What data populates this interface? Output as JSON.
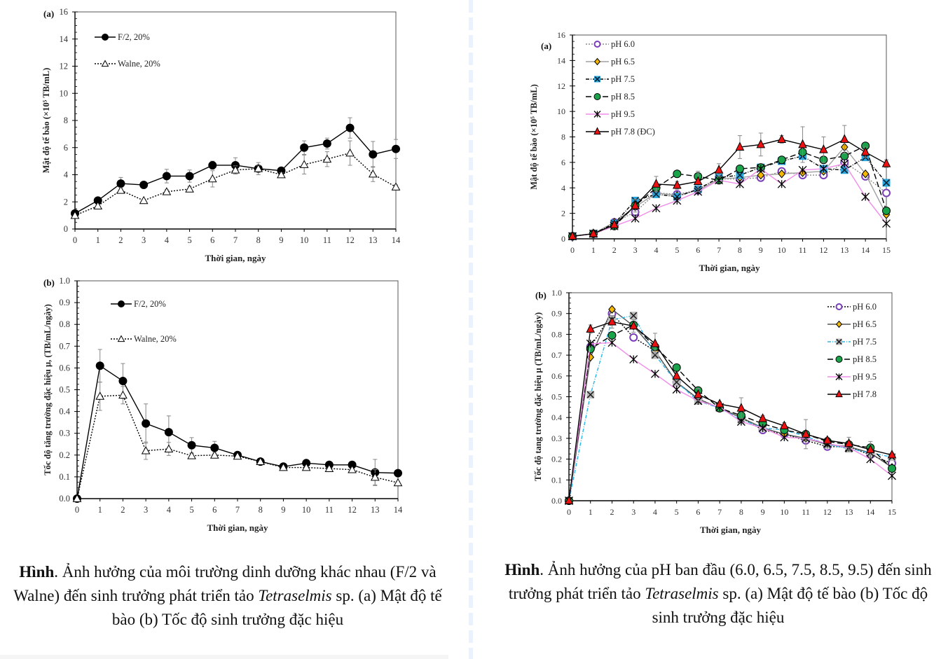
{
  "chart_data": [
    {
      "id": "left-a",
      "type": "line",
      "panel_label": "(a)",
      "title": "",
      "xlabel": "Thời gian, ngày",
      "ylabel": "Mật độ tế bào (×10⁵ TB/mL)",
      "x": [
        0,
        1,
        2,
        3,
        4,
        5,
        6,
        7,
        8,
        9,
        10,
        11,
        12,
        13,
        14
      ],
      "xlim": [
        0,
        14
      ],
      "ylim": [
        0,
        16
      ],
      "yticks": [
        0,
        2,
        4,
        6,
        8,
        10,
        12,
        14,
        16
      ],
      "ytick_format": "int",
      "legend": "top-left",
      "grid": false,
      "series": [
        {
          "name": "F/2, 20%",
          "marker": "filled-circle",
          "color": "#000000",
          "dash": "solid",
          "values": [
            1.15,
            2.1,
            3.35,
            3.25,
            3.9,
            3.9,
            4.7,
            4.7,
            4.45,
            4.3,
            6.0,
            6.3,
            7.45,
            5.5,
            5.9
          ],
          "errors": [
            0.1,
            0.15,
            0.45,
            0.2,
            0.5,
            0.45,
            0.3,
            0.55,
            0.45,
            0.2,
            0.5,
            0.4,
            0.75,
            0.95,
            0.7
          ]
        },
        {
          "name": "Walne, 20%",
          "marker": "open-triangle",
          "color": "#000000",
          "dash": "dotted",
          "values": [
            1.0,
            1.7,
            2.85,
            2.1,
            2.75,
            2.95,
            3.7,
            4.35,
            4.45,
            4.0,
            4.75,
            5.15,
            5.6,
            4.05,
            3.1
          ],
          "errors": [
            0.05,
            0.1,
            0.2,
            0.1,
            0.15,
            0.2,
            0.6,
            0.3,
            0.25,
            0.15,
            0.7,
            0.55,
            0.9,
            0.55,
            0.15
          ]
        }
      ]
    },
    {
      "id": "left-b",
      "type": "line",
      "panel_label": "(b)",
      "title": "",
      "xlabel": "Thời gian, ngày",
      "ylabel": "Tốc độ tăng trưởng đặc hiệu μ, (TB/mL/ngày)",
      "x": [
        0,
        1,
        2,
        3,
        4,
        5,
        6,
        7,
        8,
        9,
        10,
        11,
        12,
        13,
        14
      ],
      "xlim": [
        0,
        14
      ],
      "ylim": [
        0,
        1.0
      ],
      "yticks": [
        0.0,
        0.1,
        0.2,
        0.3,
        0.4,
        0.5,
        0.6,
        0.7,
        0.8,
        0.9,
        1.0
      ],
      "ytick_format": "1dp",
      "legend": "top-left",
      "grid": false,
      "series": [
        {
          "name": "F/2, 20%",
          "marker": "filled-circle",
          "color": "#000000",
          "dash": "solid",
          "values": [
            0,
            0.61,
            0.54,
            0.345,
            0.305,
            0.245,
            0.233,
            0.2,
            0.17,
            0.147,
            0.163,
            0.155,
            0.155,
            0.12,
            0.117
          ],
          "errors": [
            0,
            0.075,
            0.08,
            0.09,
            0.075,
            0.035,
            0.03,
            0.01,
            0.01,
            0.005,
            0.01,
            0.005,
            0.01,
            0.06,
            0.005
          ]
        },
        {
          "name": "Walne, 20%",
          "marker": "open-triangle",
          "color": "#000000",
          "dash": "dotted",
          "values": [
            0,
            0.47,
            0.475,
            0.22,
            0.228,
            0.197,
            0.2,
            0.195,
            0.17,
            0.143,
            0.143,
            0.138,
            0.133,
            0.098,
            0.073
          ],
          "errors": [
            0,
            0.065,
            0.04,
            0.04,
            0.03,
            0.01,
            0.01,
            0.005,
            0.005,
            0.005,
            0.005,
            0.005,
            0.005,
            0.035,
            0.005
          ]
        }
      ]
    },
    {
      "id": "right-a",
      "type": "line",
      "panel_label": "(a)",
      "title": "",
      "xlabel": "Thời gian, ngày",
      "ylabel": "Mật độ tế bào (×10⁵ TB/mL)",
      "x": [
        0,
        1,
        2,
        3,
        4,
        5,
        6,
        7,
        8,
        9,
        10,
        11,
        12,
        13,
        14,
        15
      ],
      "xlim": [
        0,
        15
      ],
      "ylim": [
        0,
        16
      ],
      "yticks": [
        0,
        2,
        4,
        6,
        8,
        10,
        12,
        14,
        16
      ],
      "ytick_format": "int",
      "legend": "top-left",
      "grid": false,
      "series": [
        {
          "name": "pH 6.0",
          "marker": "open-circle",
          "color": "#7a3db8",
          "line": "#8c8c8c",
          "dash": "dotted",
          "values": [
            0.2,
            0.4,
            1.3,
            2.1,
            3.6,
            3.5,
            3.8,
            4.7,
            4.7,
            4.8,
            5.3,
            5.0,
            5.0,
            6.0,
            4.9,
            3.6
          ]
        },
        {
          "name": "pH 6.5",
          "marker": "diamond",
          "color": "#f5b800",
          "line": "#a0a0a0",
          "dash": "solid",
          "values": [
            0.2,
            0.4,
            1.3,
            2.5,
            3.6,
            3.4,
            3.8,
            4.7,
            4.8,
            5.0,
            5.1,
            5.2,
            5.3,
            7.2,
            5.1,
            1.9
          ]
        },
        {
          "name": "pH 7.5",
          "marker": "x-square",
          "color": "#29a8e0",
          "line": "#000000",
          "dash": "dashdot",
          "values": [
            0.2,
            0.4,
            1.2,
            3.0,
            3.5,
            3.3,
            3.9,
            4.8,
            5.0,
            5.6,
            6.1,
            6.5,
            5.5,
            5.4,
            6.4,
            4.4
          ]
        },
        {
          "name": "pH 8.5",
          "marker": "filled-circle",
          "color": "#1aa34a",
          "line": "#000000",
          "dash": "longdash",
          "values": [
            0.2,
            0.4,
            1.0,
            2.6,
            4.0,
            5.1,
            4.9,
            4.6,
            5.5,
            5.6,
            6.2,
            6.8,
            6.2,
            6.5,
            7.3,
            2.2
          ]
        },
        {
          "name": "pH 9.5",
          "marker": "asterisk",
          "color": "#000000",
          "line": "#f08ce8",
          "dash": "solid",
          "values": [
            0.2,
            0.4,
            1.0,
            1.6,
            2.4,
            3.0,
            3.7,
            4.6,
            4.3,
            5.5,
            4.3,
            5.4,
            5.5,
            5.9,
            3.3,
            1.2
          ]
        },
        {
          "name": "pH 7.8 (ĐC)",
          "marker": "triangle",
          "color": "#ee1111",
          "line": "#000000",
          "dash": "solid",
          "values": [
            0.2,
            0.4,
            1.1,
            2.6,
            4.3,
            4.2,
            4.5,
            5.4,
            7.2,
            7.4,
            7.8,
            7.4,
            7.0,
            7.8,
            6.8,
            5.9
          ],
          "errors": [
            0.05,
            0.1,
            0.2,
            0.5,
            0.6,
            0.3,
            0.8,
            0.5,
            0.9,
            0.9,
            0.3,
            1.4,
            1.0,
            1.1,
            0.4,
            0.3
          ]
        }
      ]
    },
    {
      "id": "right-b",
      "type": "line",
      "panel_label": "(b)",
      "title": "",
      "xlabel": "Thời gian, ngày",
      "ylabel": "Tốc độ tang trưởng đặc hiệu μ (TB/mL/ngày)",
      "x": [
        0,
        1,
        2,
        3,
        4,
        5,
        6,
        7,
        8,
        9,
        10,
        11,
        12,
        13,
        14,
        15
      ],
      "xlim": [
        0,
        15
      ],
      "ylim": [
        0,
        1.0
      ],
      "yticks": [
        0.0,
        0.1,
        0.2,
        0.3,
        0.4,
        0.5,
        0.6,
        0.7,
        0.8,
        0.9,
        1.0
      ],
      "ytick_format": "1dp",
      "legend": "top-right",
      "grid": false,
      "series": [
        {
          "name": "pH 6.0",
          "marker": "open-circle",
          "color": "#7a3db8",
          "line": "#000000",
          "dash": "dotted",
          "values": [
            0,
            0.74,
            0.9,
            0.785,
            0.72,
            0.57,
            0.49,
            0.445,
            0.4,
            0.34,
            0.32,
            0.29,
            0.26,
            0.26,
            0.22,
            0.18
          ]
        },
        {
          "name": "pH 6.5",
          "marker": "diamond",
          "color": "#f5b800",
          "line": "#555555",
          "dash": "solid",
          "values": [
            0,
            0.69,
            0.92,
            0.84,
            0.72,
            0.57,
            0.49,
            0.445,
            0.4,
            0.35,
            0.32,
            0.3,
            0.27,
            0.26,
            0.23,
            0.16
          ]
        },
        {
          "name": "pH 7.5",
          "marker": "x-grey",
          "color": "#333333",
          "line": "#29b6e8",
          "dash": "dashdot",
          "values": [
            0,
            0.51,
            0.87,
            0.89,
            0.7,
            0.57,
            0.48,
            0.445,
            0.39,
            0.35,
            0.34,
            0.31,
            0.27,
            0.25,
            0.23,
            0.21
          ]
        },
        {
          "name": "pH 8.5",
          "marker": "filled-circle",
          "color": "#1aa34a",
          "line": "#000000",
          "dash": "longdash",
          "values": [
            0,
            0.73,
            0.795,
            0.845,
            0.74,
            0.64,
            0.53,
            0.445,
            0.41,
            0.37,
            0.34,
            0.32,
            0.285,
            0.27,
            0.255,
            0.155
          ]
        },
        {
          "name": "pH 9.5",
          "marker": "asterisk",
          "color": "#000000",
          "line": "#f08ce8",
          "dash": "solid",
          "values": [
            0,
            0.755,
            0.76,
            0.68,
            0.61,
            0.535,
            0.48,
            0.45,
            0.38,
            0.35,
            0.305,
            0.3,
            0.275,
            0.255,
            0.2,
            0.12
          ]
        },
        {
          "name": "pH 7.8",
          "marker": "triangle",
          "color": "#ee1111",
          "line": "#000000",
          "dash": "solid",
          "values": [
            0,
            0.825,
            0.86,
            0.84,
            0.755,
            0.6,
            0.51,
            0.465,
            0.445,
            0.395,
            0.36,
            0.32,
            0.29,
            0.275,
            0.245,
            0.22
          ],
          "errors": [
            0,
            0.02,
            0.03,
            0.03,
            0.05,
            0.02,
            0.03,
            0.01,
            0.05,
            0.015,
            0.015,
            0.07,
            0.015,
            0.03,
            0.04,
            0.01
          ]
        }
      ]
    }
  ],
  "captions": {
    "left": {
      "bold": "Hình",
      "part1": ". Ảnh hưởng của môi trường dinh dưỡng khác nhau (F/2 và Walne) đến sinh trưởng phát triển tảo ",
      "italic": "Tetraselmis",
      "part2": " sp. (a) Mật độ tế bào (b) Tốc độ sinh trưởng đặc hiệu"
    },
    "right": {
      "bold": "Hình",
      "part1": ". Ảnh hưởng của pH ban đầu (6.0, 6.5, 7.5, 8.5, 9.5) đến sinh trưởng phát triển tảo ",
      "italic": "Tetraselmis",
      "part2": " sp. (a) Mật độ tế bào (b) Tốc độ sinh trưởng đặc hiệu"
    }
  }
}
